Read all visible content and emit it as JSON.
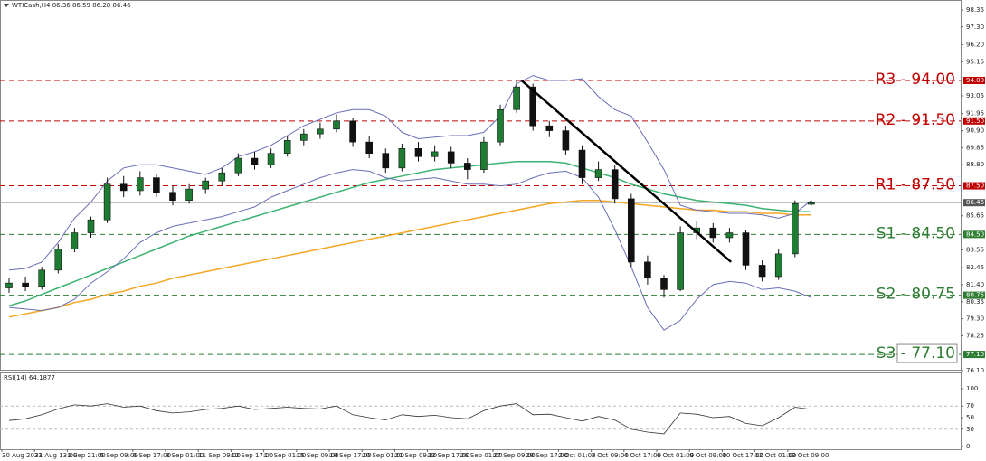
{
  "chart_data": {
    "type": "candlestick",
    "title": "WTICash,H4  86.36 86.59 86.28 86.46",
    "categories": [
      "30 Aug 2023",
      null,
      "31 Aug 13:00",
      null,
      "1 Sep 21:00",
      null,
      "5 Sep 09:00",
      null,
      "6 Sep 17:00",
      null,
      "8 Sep 01:00",
      null,
      "11 Sep 09:00",
      null,
      "12 Sep 17:00",
      null,
      "14 Sep 01:00",
      null,
      "15 Sep 09:00",
      null,
      "18 Sep 17:00",
      null,
      "20 Sep 01:00",
      null,
      "21 Sep 09:00",
      null,
      "22 Sep 17:00",
      null,
      "26 Sep 01:00",
      null,
      "27 Sep 09:00",
      null,
      "28 Sep 17:00",
      null,
      "2 Oct 01:00",
      null,
      "3 Oct 09:00",
      null,
      "4 Oct 17:00",
      null,
      "6 Oct 01:00",
      null,
      "9 Oct 09:00",
      null,
      "10 Oct 17:00",
      null,
      "12 Oct 01:00",
      null,
      "13 Oct 09:00",
      null
    ],
    "open": [
      81.2,
      81.5,
      81.3,
      82.3,
      83.6,
      84.6,
      85.4,
      87.6,
      87.2,
      88.0,
      87.1,
      86.6,
      87.3,
      87.8,
      88.3,
      89.2,
      88.8,
      89.5,
      90.3,
      90.7,
      91.0,
      91.5,
      90.2,
      89.5,
      88.6,
      89.8,
      89.3,
      89.6,
      88.9,
      88.5,
      90.2,
      92.2,
      93.6,
      91.2,
      90.9,
      89.7,
      88.0,
      88.5,
      86.7,
      82.8,
      81.8,
      81.1,
      84.6,
      84.9,
      84.3,
      84.6,
      82.6,
      81.9,
      83.3,
      86.36
    ],
    "high": [
      81.8,
      81.9,
      82.5,
      83.9,
      84.9,
      85.6,
      88.0,
      88.1,
      88.4,
      88.2,
      87.5,
      87.6,
      88.0,
      88.6,
      89.5,
      89.6,
      89.8,
      90.6,
      91.0,
      91.4,
      91.9,
      91.7,
      90.6,
      89.8,
      90.1,
      90.2,
      90.0,
      89.9,
      89.2,
      90.5,
      92.5,
      94.0,
      93.8,
      91.5,
      91.2,
      90.0,
      89.0,
      88.8,
      87.0,
      83.2,
      82.0,
      85.0,
      85.3,
      85.2,
      84.9,
      84.8,
      82.9,
      83.6,
      86.6,
      86.59
    ],
    "low": [
      80.9,
      81.0,
      81.1,
      82.1,
      83.4,
      84.3,
      85.2,
      86.8,
      86.9,
      86.8,
      86.3,
      86.4,
      87.0,
      87.5,
      88.1,
      88.5,
      88.6,
      89.3,
      90.0,
      90.4,
      90.8,
      89.9,
      89.2,
      88.3,
      88.4,
      89.0,
      89.0,
      88.6,
      87.9,
      88.3,
      90.0,
      92.0,
      90.9,
      90.5,
      89.4,
      87.6,
      87.8,
      86.4,
      82.5,
      81.4,
      80.6,
      81.0,
      84.2,
      84.0,
      84.0,
      82.3,
      81.6,
      81.7,
      83.1,
      86.28
    ],
    "close": [
      81.5,
      81.3,
      82.3,
      83.6,
      84.6,
      85.4,
      87.6,
      87.2,
      88.0,
      87.1,
      86.6,
      87.3,
      87.8,
      88.3,
      89.2,
      88.8,
      89.5,
      90.3,
      90.7,
      91.0,
      91.5,
      90.2,
      89.5,
      88.6,
      89.8,
      89.3,
      89.6,
      88.9,
      88.5,
      90.2,
      92.2,
      93.6,
      91.2,
      90.9,
      89.7,
      88.0,
      88.5,
      86.7,
      82.8,
      81.8,
      81.1,
      84.6,
      84.9,
      84.3,
      84.6,
      82.6,
      81.9,
      83.3,
      86.4,
      86.46
    ],
    "up_color": "#1e7d32",
    "down_color": "#111111",
    "overlays": [
      {
        "color": "#f5a623",
        "values": [
          79.4,
          79.6,
          79.8,
          80.0,
          80.3,
          80.5,
          80.8,
          81.0,
          81.3,
          81.5,
          81.8,
          82.0,
          82.2,
          82.4,
          82.6,
          82.8,
          83.0,
          83.2,
          83.4,
          83.6,
          83.8,
          84.0,
          84.2,
          84.4,
          84.6,
          84.8,
          85.0,
          85.2,
          85.4,
          85.6,
          85.8,
          86.0,
          86.2,
          86.4,
          86.5,
          86.6,
          86.6,
          86.5,
          86.4,
          86.3,
          86.2,
          86.1,
          86.0,
          86.0,
          85.9,
          85.9,
          85.8,
          85.8,
          85.7,
          85.7
        ]
      },
      {
        "color": "#3cb371",
        "values": [
          80.1,
          80.4,
          80.8,
          81.2,
          81.6,
          82.0,
          82.4,
          82.8,
          83.2,
          83.6,
          84.0,
          84.4,
          84.7,
          85.0,
          85.3,
          85.6,
          85.9,
          86.2,
          86.5,
          86.8,
          87.1,
          87.4,
          87.7,
          87.9,
          88.1,
          88.3,
          88.5,
          88.6,
          88.7,
          88.8,
          88.9,
          89.0,
          89.0,
          89.0,
          88.9,
          88.6,
          88.3,
          88.0,
          87.6,
          87.3,
          87.0,
          86.8,
          86.6,
          86.5,
          86.4,
          86.3,
          86.1,
          86.0,
          85.9,
          85.9
        ]
      },
      {
        "color": "#6a6fb5",
        "values": [
          82.3,
          82.4,
          82.8,
          84.0,
          85.5,
          86.5,
          87.8,
          88.6,
          88.8,
          88.8,
          88.6,
          88.4,
          88.2,
          88.6,
          89.3,
          89.6,
          90.0,
          90.6,
          91.2,
          91.6,
          92.0,
          92.2,
          92.2,
          91.8,
          90.8,
          90.4,
          90.5,
          90.6,
          90.6,
          90.8,
          91.8,
          93.8,
          94.3,
          94.0,
          94.0,
          94.1,
          93.0,
          92.2,
          91.8,
          90.2,
          88.5,
          86.3,
          86.0,
          85.9,
          85.8,
          85.8,
          85.7,
          85.5,
          85.8,
          86.6
        ]
      },
      {
        "color": "#6a6fb5",
        "values": [
          80.0,
          79.9,
          79.8,
          80.0,
          80.5,
          81.5,
          82.2,
          83.0,
          84.0,
          84.6,
          85.0,
          85.2,
          85.4,
          85.6,
          85.9,
          86.2,
          86.8,
          87.2,
          87.6,
          88.0,
          88.3,
          88.5,
          88.4,
          88.0,
          87.8,
          87.9,
          88.0,
          87.8,
          87.6,
          87.6,
          87.5,
          87.6,
          88.0,
          88.3,
          88.4,
          88.0,
          86.8,
          84.8,
          82.5,
          80.0,
          78.6,
          79.2,
          80.5,
          81.4,
          81.6,
          81.5,
          81.1,
          81.2,
          81.0,
          80.6
        ]
      }
    ],
    "trendline": {
      "x": [
        31.3,
        44.1
      ],
      "y": [
        94.0,
        82.8
      ],
      "color": "#000000"
    },
    "ylim": [
      76.1,
      98.85
    ],
    "yticks": [
      {
        "value": 98.35,
        "label": "98.35"
      },
      {
        "value": 97.3,
        "label": "97.30"
      },
      {
        "value": 96.2,
        "label": "96.20"
      },
      {
        "value": 95.15,
        "label": "95.15"
      },
      {
        "value": 93.05,
        "label": "93.05"
      },
      {
        "value": 91.95,
        "label": "91.95"
      },
      {
        "value": 90.9,
        "label": "90.90"
      },
      {
        "value": 89.85,
        "label": "89.85"
      },
      {
        "value": 88.8,
        "label": "88.80"
      },
      {
        "value": 85.65,
        "label": "85.65"
      },
      {
        "value": 83.55,
        "label": "83.55"
      },
      {
        "value": 82.45,
        "label": "82.45"
      },
      {
        "value": 81.4,
        "label": "81.40"
      },
      {
        "value": 80.35,
        "label": "80.35"
      },
      {
        "value": 79.3,
        "label": "79.30"
      },
      {
        "value": 78.25,
        "label": "78.25"
      },
      {
        "value": 76.1,
        "label": "76.10"
      }
    ],
    "levels": [
      {
        "label": "R3 - 94.00",
        "tag": "94.00",
        "value": 94.0,
        "color": "#c00000"
      },
      {
        "label": "R2 - 91.50",
        "tag": "91.50",
        "value": 91.5,
        "color": "#c00000"
      },
      {
        "label": "R1 - 87.50",
        "tag": "87.50",
        "value": 87.5,
        "color": "#c00000"
      },
      {
        "label": "S1 - 84.50",
        "tag": "84.50",
        "value": 84.5,
        "color": "#2e7d32"
      },
      {
        "label": "S2 - 80.75",
        "tag": "80.75",
        "value": 80.75,
        "color": "#2e7d32"
      },
      {
        "label": "S3 - 77.10",
        "tag": "77.10",
        "value": 77.1,
        "color": "#2e7d32",
        "boxed": true
      }
    ],
    "current": {
      "value": 86.46,
      "tag": "86.46",
      "color": "#555555"
    },
    "rsi": {
      "title": "RSI(14) 64.1877",
      "color": "#333333",
      "values": [
        45,
        48,
        55,
        65,
        72,
        70,
        74,
        68,
        70,
        62,
        58,
        60,
        64,
        66,
        70,
        64,
        66,
        68,
        66,
        65,
        70,
        55,
        50,
        46,
        55,
        52,
        54,
        50,
        48,
        62,
        70,
        74,
        55,
        56,
        50,
        44,
        52,
        46,
        30,
        25,
        22,
        58,
        56,
        50,
        52,
        40,
        36,
        50,
        68,
        64.1877
      ],
      "ylim": [
        0,
        100
      ],
      "yticks": [
        100,
        70,
        50,
        30,
        0
      ],
      "levels": [
        70,
        30
      ]
    }
  }
}
